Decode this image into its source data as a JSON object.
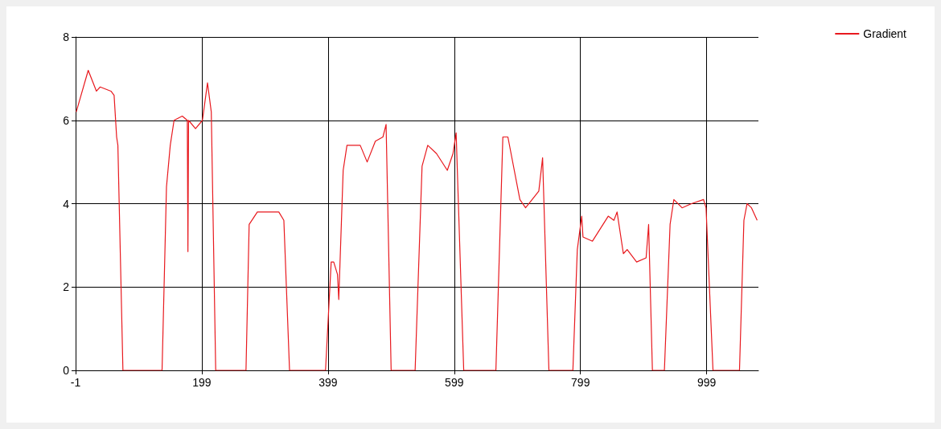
{
  "chart_data": {
    "type": "line",
    "xlim": [
      -1,
      1081
    ],
    "xticks": [
      -1,
      199,
      399,
      599,
      799,
      999
    ],
    "ylim": [
      0,
      8
    ],
    "yticks": [
      0,
      2,
      4,
      6,
      8
    ],
    "grid": true,
    "legend": "top right",
    "marker": "none",
    "line_style": "solid",
    "series": [
      {
        "name": "Gradient",
        "color": "#e8191e",
        "x": [
          0,
          19,
          32,
          38,
          55,
          60,
          64,
          66,
          74,
          136,
          143,
          149,
          155,
          168,
          176,
          177,
          178,
          189,
          200,
          208,
          214,
          221,
          269,
          274,
          287,
          321,
          329,
          338,
          395,
          404,
          408,
          414,
          416,
          423,
          429,
          450,
          461,
          474,
          486,
          491,
          499,
          537,
          548,
          557,
          571,
          588,
          597,
          602,
          614,
          665,
          676,
          684,
          703,
          712,
          733,
          739,
          749,
          787,
          794,
          801,
          803,
          818,
          843,
          852,
          857,
          867,
          873,
          888,
          903,
          907,
          913,
          932,
          941,
          947,
          960,
          975,
          994,
          998,
          1009,
          1051,
          1058,
          1063,
          1070,
          1079
        ],
        "values": [
          6.2,
          7.2,
          6.7,
          6.8,
          6.7,
          6.6,
          5.6,
          5.4,
          0,
          0,
          4.4,
          5.4,
          6.0,
          6.1,
          6.0,
          2.85,
          6.0,
          5.8,
          6.0,
          6.9,
          6.2,
          0,
          0,
          3.5,
          3.8,
          3.8,
          3.6,
          0,
          0,
          2.6,
          2.6,
          2.3,
          1.7,
          4.8,
          5.4,
          5.4,
          5.0,
          5.5,
          5.6,
          5.9,
          0,
          0,
          4.9,
          5.4,
          5.2,
          4.8,
          5.2,
          5.7,
          0,
          0,
          5.6,
          5.6,
          4.1,
          3.9,
          4.3,
          5.1,
          0,
          0,
          2.9,
          3.7,
          3.2,
          3.1,
          3.7,
          3.6,
          3.8,
          2.8,
          2.9,
          2.6,
          2.7,
          3.5,
          0,
          0,
          3.5,
          4.1,
          3.9,
          4.0,
          4.1,
          3.9,
          0,
          0,
          3.6,
          4.0,
          3.9,
          3.6
        ]
      }
    ]
  }
}
